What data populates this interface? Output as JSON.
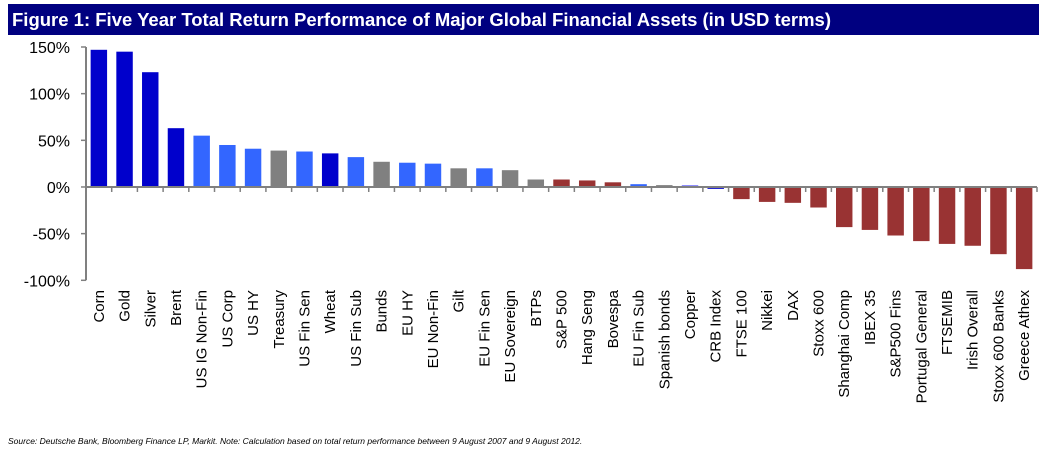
{
  "title": "Figure 1: Five Year Total Return Performance of Major Global Financial Assets (in USD terms)",
  "source_note": "Source: Deutsche Bank, Bloomberg Finance LP, Markit. Note: Calculation based on total return performance between 9 August 2007 and 9 August 2012.",
  "colors": {
    "title_background": "#000080",
    "commodity_dark_blue": "#0000cc",
    "credit_light_blue": "#3366ff",
    "sovereign_gray": "#808080",
    "equity_red": "#993333",
    "copper_light_purple": "#8080ff",
    "axis": "#808080"
  },
  "chart_data": {
    "type": "bar",
    "title": "Figure 1: Five Year Total Return Performance of Major Global Financial Assets (in USD terms)",
    "xlabel": "",
    "ylabel": "",
    "ylim": [
      -100,
      150
    ],
    "yticks": [
      150,
      100,
      50,
      0,
      -50,
      -100
    ],
    "ytick_labels": [
      "150%",
      "100%",
      "50%",
      "0%",
      "-50%",
      "-100%"
    ],
    "grid": false,
    "legend": "none",
    "categories": [
      "Corn",
      "Gold",
      "Silver",
      "Brent",
      "US IG Non-Fin",
      "US Corp",
      "US HY",
      "Treasury",
      "US Fin Sen",
      "Wheat",
      "US Fin Sub",
      "Bunds",
      "EU HY",
      "EU Non-Fin",
      "Gilt",
      "EU Fin Sen",
      "EU Sovereign",
      "BTPs",
      "S&P 500",
      "Hang Seng",
      "Bovespa",
      "EU Fin Sub",
      "Spanish bonds",
      "Copper",
      "CRB Index",
      "FTSE 100",
      "Nikkei",
      "DAX",
      "Stoxx 600",
      "Shanghai Comp",
      "IBEX 35",
      "S&P500 Fins",
      "Portugal General",
      "FTSEMIB",
      "Irish Overall",
      "Stoxx 600 Banks",
      "Greece Athex"
    ],
    "values": [
      147,
      145,
      123,
      63,
      55,
      45,
      41,
      39,
      38,
      36,
      32,
      27,
      26,
      25,
      20,
      20,
      18,
      8,
      8,
      7,
      5,
      3,
      2,
      2,
      -2,
      -13,
      -16,
      -17,
      -22,
      -43,
      -46,
      -52,
      -58,
      -61,
      -63,
      -72,
      -88
    ],
    "bar_colors": [
      "#0000cc",
      "#0000cc",
      "#0000cc",
      "#0000cc",
      "#3366ff",
      "#3366ff",
      "#3366ff",
      "#808080",
      "#3366ff",
      "#0000cc",
      "#3366ff",
      "#808080",
      "#3366ff",
      "#3366ff",
      "#808080",
      "#3366ff",
      "#808080",
      "#808080",
      "#993333",
      "#993333",
      "#993333",
      "#3366ff",
      "#808080",
      "#8080ff",
      "#0000cc",
      "#993333",
      "#993333",
      "#993333",
      "#993333",
      "#993333",
      "#993333",
      "#993333",
      "#993333",
      "#993333",
      "#993333",
      "#993333",
      "#993333"
    ]
  }
}
